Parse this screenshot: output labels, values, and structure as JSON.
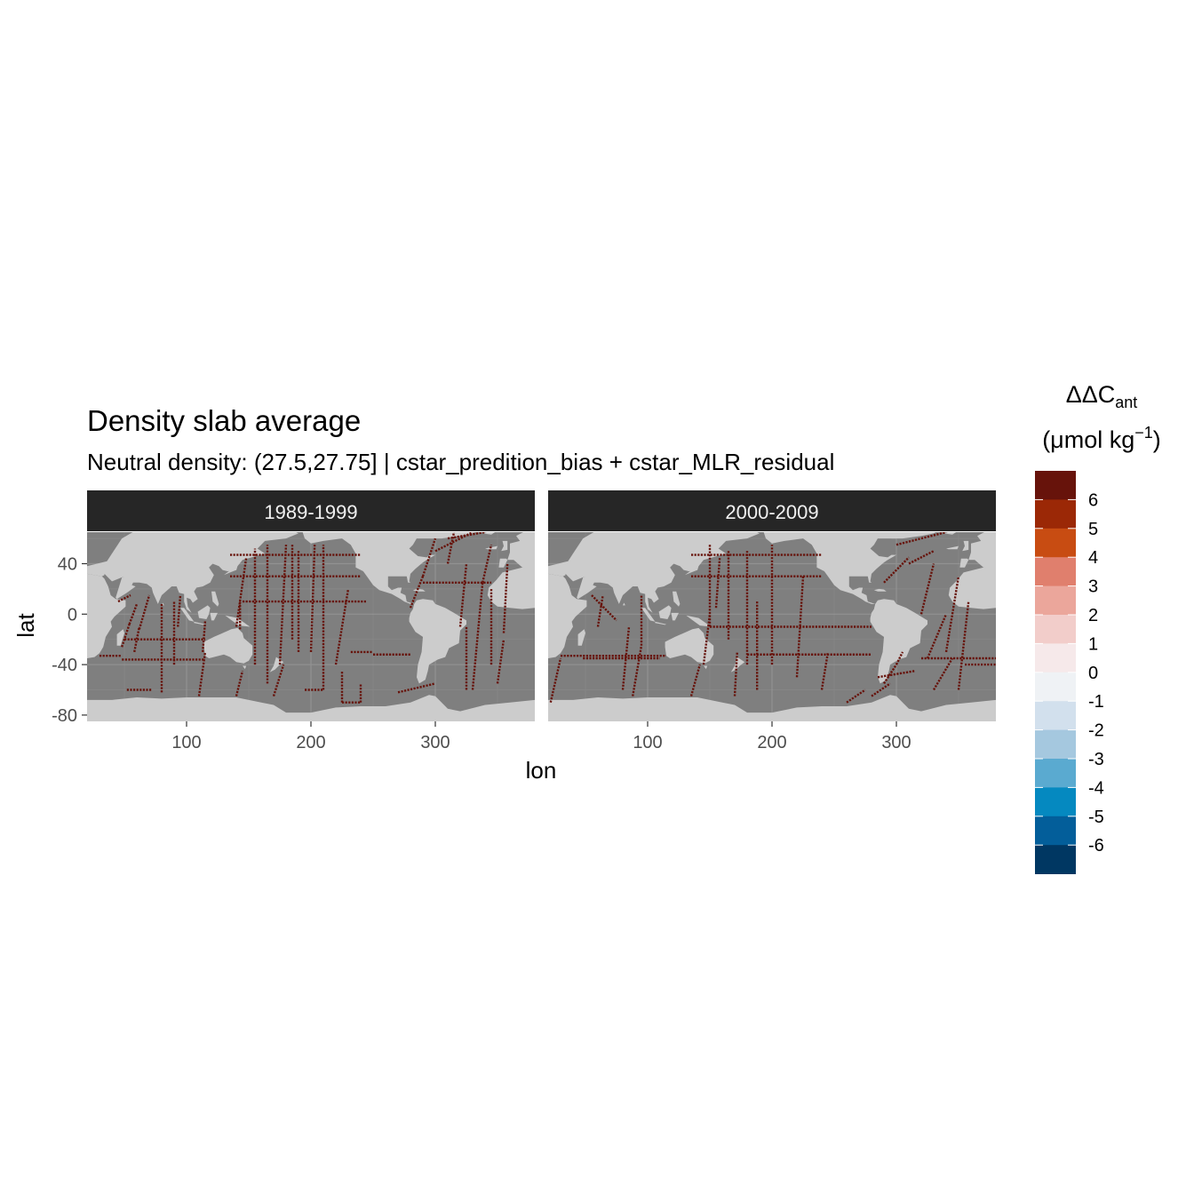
{
  "chart_data": {
    "type": "heatmap",
    "title": "Density slab average",
    "subtitle": "Neutral density: (27.5,27.75] | cstar_predition_bias + cstar_MLR_residual",
    "xlabel": "lon",
    "ylabel": "lat",
    "xlim": [
      20,
      380
    ],
    "ylim": [
      -85,
      65
    ],
    "x_ticks": [
      100,
      200,
      300
    ],
    "y_ticks": [
      40,
      0,
      -40,
      -80
    ],
    "x_tick_labels": [
      "100",
      "200",
      "300"
    ],
    "y_tick_labels": [
      "40",
      "0",
      "-40",
      "-80"
    ],
    "grid": true,
    "legend_position": "right",
    "colors": {
      "ocean": "#7f7f7f",
      "land": "#cccccc",
      "strip": "#262626",
      "strip_text": "#f0f0f0",
      "track": "#67130b"
    },
    "legend": {
      "title": "ΔΔC",
      "title_sub": "ant",
      "unit_pre": "(μmol kg",
      "unit_sup": "−1",
      "unit_post": ")",
      "breaks": [
        "6",
        "5",
        "4",
        "3",
        "2",
        "1",
        "0",
        "-1",
        "-2",
        "-3",
        "-4",
        "-5",
        "-6"
      ],
      "bins": [
        "#67130b",
        "#9b2806",
        "#c84c12",
        "#e07f6d",
        "#eba69b",
        "#f2cdca",
        "#f6e9ea",
        "#eff2f5",
        "#d2e0ed",
        "#a5c8df",
        "#5aaad0",
        "#0589c0",
        "#035e9a",
        "#003762"
      ]
    },
    "panels": [
      {
        "label": "1989-1999",
        "value_shown": 6,
        "tracks": [
          {
            "lon": [
              30,
              48
            ],
            "lat": [
              -33,
              -33
            ]
          },
          {
            "lon": [
              48,
              115
            ],
            "lat": [
              -36,
              -36
            ]
          },
          {
            "lon": [
              52,
              72
            ],
            "lat": [
              -60,
              -60
            ]
          },
          {
            "lon": [
              48,
              54
            ],
            "lat": [
              -26,
              -8
            ]
          },
          {
            "lon": [
              54,
              60
            ],
            "lat": [
              -8,
              8
            ]
          },
          {
            "lon": [
              45,
              55
            ],
            "lat": [
              10,
              15
            ]
          },
          {
            "lon": [
              58,
              62
            ],
            "lat": [
              -30,
              -10
            ]
          },
          {
            "lon": [
              50,
              115
            ],
            "lat": [
              -20,
              -20
            ]
          },
          {
            "lon": [
              62,
              70
            ],
            "lat": [
              -12,
              15
            ]
          },
          {
            "lon": [
              80,
              80
            ],
            "lat": [
              -62,
              8
            ]
          },
          {
            "lon": [
              90,
              90
            ],
            "lat": [
              -40,
              10
            ]
          },
          {
            "lon": [
              93,
              95
            ],
            "lat": [
              -10,
              15
            ]
          },
          {
            "lon": [
              110,
              115
            ],
            "lat": [
              -65,
              -30
            ]
          },
          {
            "lon": [
              113,
              115
            ],
            "lat": [
              -30,
              -5
            ]
          },
          {
            "lon": [
              140,
              145
            ],
            "lat": [
              -65,
              -45
            ]
          },
          {
            "lon": [
              140,
              148
            ],
            "lat": [
              -10,
              45
            ]
          },
          {
            "lon": [
              143,
              143
            ],
            "lat": [
              -12,
              10
            ]
          },
          {
            "lon": [
              155,
              155
            ],
            "lat": [
              -40,
              52
            ]
          },
          {
            "lon": [
              165,
              165
            ],
            "lat": [
              -55,
              55
            ]
          },
          {
            "lon": [
              170,
              178
            ],
            "lat": [
              -65,
              -40
            ]
          },
          {
            "lon": [
              175,
              180
            ],
            "lat": [
              -40,
              55
            ]
          },
          {
            "lon": [
              185,
              185
            ],
            "lat": [
              -20,
              55
            ]
          },
          {
            "lon": [
              190,
              190
            ],
            "lat": [
              -30,
              50
            ]
          },
          {
            "lon": [
              200,
              203
            ],
            "lat": [
              -30,
              55
            ]
          },
          {
            "lon": [
              210,
              210
            ],
            "lat": [
              -60,
              55
            ]
          },
          {
            "lon": [
              135,
              240
            ],
            "lat": [
              30,
              30
            ]
          },
          {
            "lon": [
              135,
              240
            ],
            "lat": [
              47,
              47
            ]
          },
          {
            "lon": [
              145,
              245
            ],
            "lat": [
              10,
              10
            ]
          },
          {
            "lon": [
              195,
              210
            ],
            "lat": [
              -60,
              -60
            ]
          },
          {
            "lon": [
              220,
              230
            ],
            "lat": [
              -40,
              20
            ]
          },
          {
            "lon": [
              232,
              250
            ],
            "lat": [
              -30,
              -30
            ]
          },
          {
            "lon": [
              250,
              280
            ],
            "lat": [
              -32,
              -32
            ]
          },
          {
            "lon": [
              225,
              225
            ],
            "lat": [
              -70,
              -45
            ]
          },
          {
            "lon": [
              225,
              240
            ],
            "lat": [
              -70,
              -70
            ]
          },
          {
            "lon": [
              240,
              240
            ],
            "lat": [
              -70,
              -55
            ]
          },
          {
            "lon": [
              270,
              300
            ],
            "lat": [
              -62,
              -55
            ]
          },
          {
            "lon": [
              280,
              290
            ],
            "lat": [
              5,
              30
            ]
          },
          {
            "lon": [
              290,
              300
            ],
            "lat": [
              30,
              60
            ]
          },
          {
            "lon": [
              300,
              330
            ],
            "lat": [
              50,
              65
            ]
          },
          {
            "lon": [
              310,
              340
            ],
            "lat": [
              60,
              65
            ]
          },
          {
            "lon": [
              290,
              345
            ],
            "lat": [
              25,
              25
            ]
          },
          {
            "lon": [
              310,
              315
            ],
            "lat": [
              40,
              65
            ]
          },
          {
            "lon": [
              320,
              325
            ],
            "lat": [
              -10,
              40
            ]
          },
          {
            "lon": [
              325,
              325
            ],
            "lat": [
              -60,
              -10
            ]
          },
          {
            "lon": [
              330,
              338
            ],
            "lat": [
              -60,
              25
            ]
          },
          {
            "lon": [
              338,
              345
            ],
            "lat": [
              25,
              55
            ]
          },
          {
            "lon": [
              345,
              345
            ],
            "lat": [
              -40,
              20
            ]
          },
          {
            "lon": [
              350,
              355
            ],
            "lat": [
              -55,
              -20
            ]
          },
          {
            "lon": [
              355,
              358
            ],
            "lat": [
              -15,
              40
            ]
          }
        ]
      },
      {
        "label": "2000-2009",
        "value_shown": 6,
        "tracks": [
          {
            "lon": [
              22,
              30
            ],
            "lat": [
              -70,
              -35
            ]
          },
          {
            "lon": [
              30,
              115
            ],
            "lat": [
              -33,
              -33
            ]
          },
          {
            "lon": [
              48,
              110
            ],
            "lat": [
              -35,
              -35
            ]
          },
          {
            "lon": [
              55,
              75
            ],
            "lat": [
              15,
              -5
            ]
          },
          {
            "lon": [
              60,
              64
            ],
            "lat": [
              -10,
              15
            ]
          },
          {
            "lon": [
              80,
              85
            ],
            "lat": [
              -60,
              -10
            ]
          },
          {
            "lon": [
              88,
              95
            ],
            "lat": [
              -65,
              -25
            ]
          },
          {
            "lon": [
              95,
              95
            ],
            "lat": [
              -25,
              15
            ]
          },
          {
            "lon": [
              135,
              142
            ],
            "lat": [
              -65,
              -40
            ]
          },
          {
            "lon": [
              145,
              150
            ],
            "lat": [
              -40,
              0
            ]
          },
          {
            "lon": [
              150,
              150
            ],
            "lat": [
              -10,
              55
            ]
          },
          {
            "lon": [
              135,
              240
            ],
            "lat": [
              30,
              30
            ]
          },
          {
            "lon": [
              135,
              240
            ],
            "lat": [
              47,
              47
            ]
          },
          {
            "lon": [
              155,
              158
            ],
            "lat": [
              5,
              45
            ]
          },
          {
            "lon": [
              165,
              165
            ],
            "lat": [
              -20,
              50
            ]
          },
          {
            "lon": [
              170,
              172
            ],
            "lat": [
              -65,
              -30
            ]
          },
          {
            "lon": [
              180,
              180
            ],
            "lat": [
              -40,
              50
            ]
          },
          {
            "lon": [
              180,
              280
            ],
            "lat": [
              -32,
              -32
            ]
          },
          {
            "lon": [
              188,
              188
            ],
            "lat": [
              -60,
              10
            ]
          },
          {
            "lon": [
              200,
              200
            ],
            "lat": [
              -40,
              55
            ]
          },
          {
            "lon": [
              150,
              280
            ],
            "lat": [
              -10,
              -10
            ]
          },
          {
            "lon": [
              220,
              225
            ],
            "lat": [
              -50,
              30
            ]
          },
          {
            "lon": [
              240,
              245
            ],
            "lat": [
              -60,
              -30
            ]
          },
          {
            "lon": [
              260,
              275
            ],
            "lat": [
              -70,
              -60
            ]
          },
          {
            "lon": [
              280,
              295
            ],
            "lat": [
              -65,
              -55
            ]
          },
          {
            "lon": [
              285,
              315
            ],
            "lat": [
              -50,
              -45
            ]
          },
          {
            "lon": [
              290,
              300
            ],
            "lat": [
              -55,
              -40
            ]
          },
          {
            "lon": [
              300,
              305
            ],
            "lat": [
              -40,
              -30
            ]
          },
          {
            "lon": [
              290,
              310
            ],
            "lat": [
              25,
              45
            ]
          },
          {
            "lon": [
              300,
              340
            ],
            "lat": [
              55,
              65
            ]
          },
          {
            "lon": [
              310,
              330
            ],
            "lat": [
              40,
              50
            ]
          },
          {
            "lon": [
              320,
              330
            ],
            "lat": [
              0,
              40
            ]
          },
          {
            "lon": [
              325,
              340
            ],
            "lat": [
              -35,
              0
            ]
          },
          {
            "lon": [
              330,
              345
            ],
            "lat": [
              -60,
              -35
            ]
          },
          {
            "lon": [
              340,
              350
            ],
            "lat": [
              -30,
              30
            ]
          },
          {
            "lon": [
              350,
              358
            ],
            "lat": [
              -60,
              10
            ]
          },
          {
            "lon": [
              320,
              380
            ],
            "lat": [
              -35,
              -35
            ]
          },
          {
            "lon": [
              355,
              380
            ],
            "lat": [
              -40,
              -40
            ]
          }
        ]
      }
    ]
  }
}
